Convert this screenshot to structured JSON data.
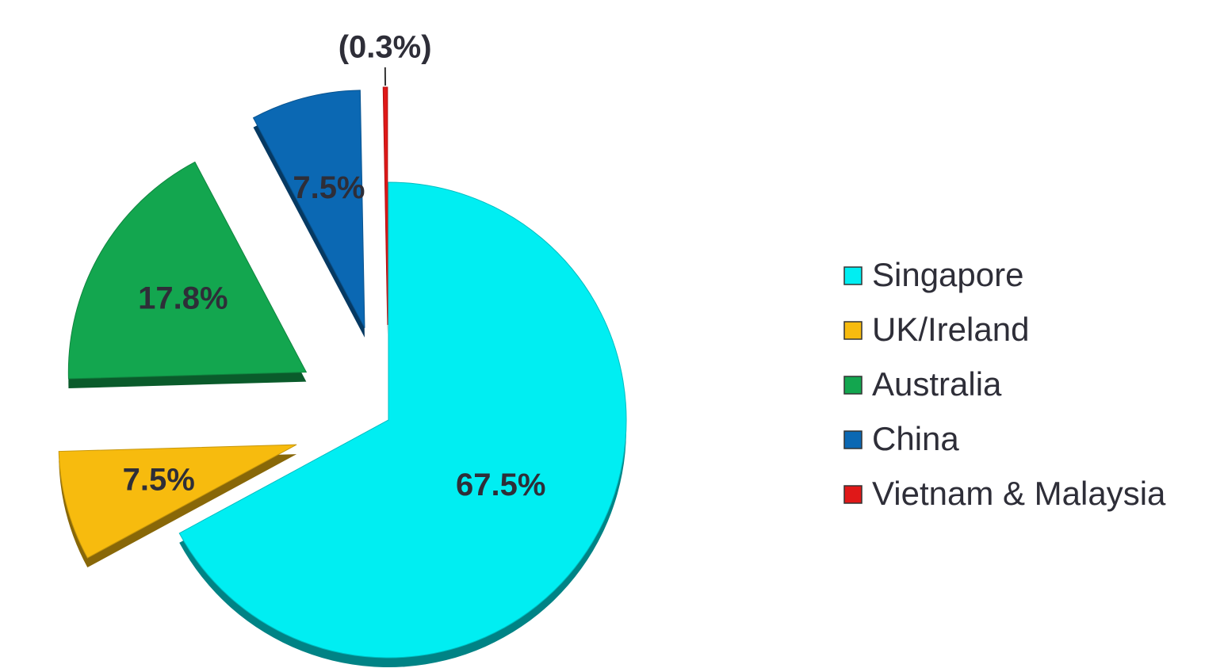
{
  "chart_data": {
    "type": "pie",
    "categories": [
      "Singapore",
      "UK/Ireland",
      "Australia",
      "China",
      "Vietnam & Malaysia"
    ],
    "values": [
      67.5,
      7.5,
      17.8,
      7.5,
      0.3
    ],
    "value_labels": [
      "67.5%",
      "7.5%",
      "17.8%",
      "7.5%",
      "(0.3%)"
    ],
    "colors": [
      "#00eef2",
      "#f7bb0e",
      "#13a64f",
      "#0b68b3",
      "#e01818"
    ],
    "explode": [
      false,
      true,
      true,
      true,
      true
    ],
    "legend": "right"
  }
}
